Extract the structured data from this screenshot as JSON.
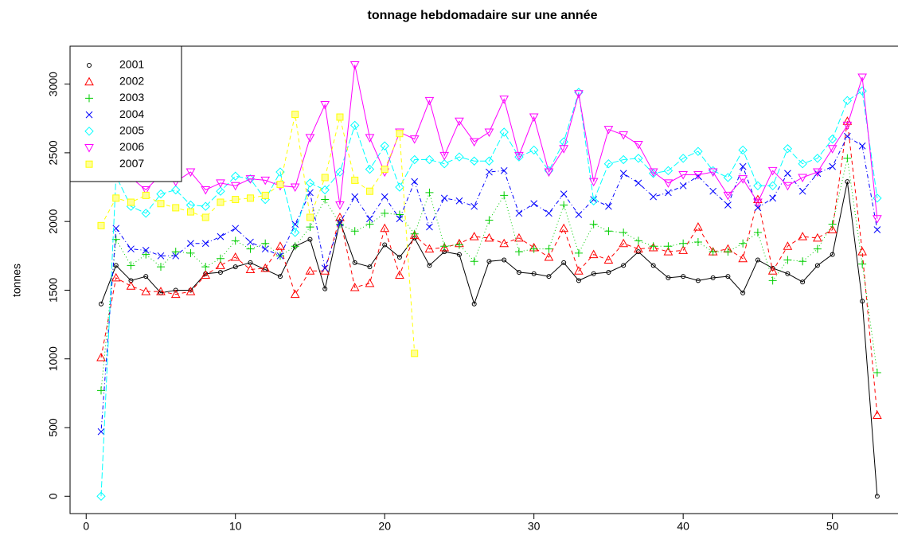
{
  "chart_data": {
    "type": "line",
    "title": "tonnage hebdomadaire sur une année",
    "y_label": "tonnes",
    "x": [
      1,
      2,
      3,
      4,
      5,
      6,
      7,
      8,
      9,
      10,
      11,
      12,
      13,
      14,
      15,
      16,
      17,
      18,
      19,
      20,
      21,
      22,
      23,
      24,
      25,
      26,
      27,
      28,
      29,
      30,
      31,
      32,
      33,
      34,
      35,
      36,
      37,
      38,
      39,
      40,
      41,
      42,
      43,
      44,
      45,
      46,
      47,
      48,
      49,
      50,
      51,
      52,
      53
    ],
    "xlim": [
      -1.08,
      54.5
    ],
    "xticks": [
      0,
      10,
      20,
      30,
      40,
      50
    ],
    "ylim": [
      -126,
      3276
    ],
    "yticks": [
      0,
      500,
      1000,
      1500,
      2000,
      2500,
      3000
    ],
    "legend": "top-left",
    "series": [
      {
        "name": "2001",
        "color": "#000000",
        "marker": "circle",
        "line_style": "solid",
        "values": [
          1400,
          1680,
          1570,
          1600,
          1480,
          1500,
          1500,
          1620,
          1630,
          1670,
          1700,
          1650,
          1600,
          1820,
          1870,
          1510,
          2000,
          1700,
          1670,
          1830,
          1740,
          1880,
          1680,
          1780,
          1760,
          1400,
          1710,
          1720,
          1630,
          1620,
          1600,
          1700,
          1570,
          1620,
          1630,
          1680,
          1780,
          1680,
          1590,
          1600,
          1570,
          1590,
          1600,
          1480,
          1720,
          1660,
          1620,
          1560,
          1680,
          1760,
          2290,
          1420,
          0
        ]
      },
      {
        "name": "2002",
        "color": "#ff0000",
        "marker": "triangle-up",
        "line_style": "dashed",
        "values": [
          1010,
          1590,
          1530,
          1490,
          1490,
          1470,
          1490,
          1610,
          1680,
          1740,
          1650,
          1660,
          1820,
          1470,
          1640,
          1640,
          2030,
          1520,
          1550,
          1950,
          1610,
          1900,
          1800,
          1810,
          1840,
          1890,
          1880,
          1840,
          1880,
          1810,
          1740,
          1950,
          1640,
          1760,
          1720,
          1840,
          1800,
          1810,
          1780,
          1790,
          1960,
          1780,
          1800,
          1730,
          2160,
          1640,
          1820,
          1890,
          1880,
          1940,
          2730,
          1780,
          590
        ]
      },
      {
        "name": "2003",
        "color": "#00cd00",
        "marker": "plus",
        "line_style": "dotted",
        "values": [
          770,
          1870,
          1680,
          1760,
          1670,
          1780,
          1770,
          1670,
          1730,
          1860,
          1800,
          1840,
          1750,
          1820,
          1960,
          2160,
          1980,
          1930,
          1980,
          2060,
          2050,
          1910,
          2210,
          1820,
          1830,
          1710,
          2010,
          2190,
          1780,
          1800,
          1800,
          2120,
          1770,
          1980,
          1930,
          1920,
          1860,
          1820,
          1820,
          1840,
          1850,
          1780,
          1780,
          1840,
          1920,
          1570,
          1720,
          1710,
          1800,
          1980,
          2460,
          1690,
          900
        ]
      },
      {
        "name": "2004",
        "color": "#0000ff",
        "marker": "cross",
        "line_style": "dotdash",
        "values": [
          470,
          1950,
          1800,
          1790,
          1750,
          1750,
          1840,
          1840,
          1890,
          1950,
          1850,
          1800,
          1750,
          1980,
          2210,
          1660,
          1990,
          2180,
          2020,
          2180,
          2020,
          2290,
          1960,
          2170,
          2150,
          2110,
          2360,
          2370,
          2060,
          2130,
          2060,
          2200,
          2050,
          2160,
          2110,
          2350,
          2280,
          2180,
          2210,
          2260,
          2330,
          2220,
          2120,
          2400,
          2100,
          2170,
          2350,
          2220,
          2350,
          2400,
          2620,
          2550,
          1940
        ]
      },
      {
        "name": "2005",
        "color": "#00ffff",
        "marker": "diamond",
        "line_style": "longdash",
        "values": [
          0,
          2330,
          2110,
          2060,
          2200,
          2230,
          2120,
          2110,
          2220,
          2330,
          2310,
          2160,
          2360,
          1920,
          2280,
          2230,
          2360,
          2700,
          2380,
          2550,
          2250,
          2450,
          2450,
          2420,
          2470,
          2440,
          2440,
          2650,
          2470,
          2520,
          2370,
          2580,
          2940,
          2150,
          2420,
          2450,
          2460,
          2350,
          2370,
          2460,
          2510,
          2370,
          2320,
          2520,
          2260,
          2260,
          2530,
          2420,
          2460,
          2600,
          2880,
          2950,
          2170
        ]
      },
      {
        "name": "2006",
        "color": "#ff00ff",
        "marker": "triangle-down",
        "line_style": "solid",
        "values": [
          null,
          2330,
          2320,
          2230,
          2340,
          2290,
          2360,
          2230,
          2280,
          2260,
          2310,
          2300,
          2260,
          2250,
          2610,
          2850,
          2120,
          3140,
          2610,
          2360,
          2650,
          2600,
          2880,
          2480,
          2730,
          2580,
          2650,
          2890,
          2480,
          2760,
          2360,
          2530,
          2930,
          2290,
          2670,
          2630,
          2560,
          2360,
          2280,
          2340,
          2340,
          2360,
          2190,
          2310,
          2140,
          2370,
          2260,
          2320,
          2360,
          2530,
          2700,
          3050,
          2020
        ]
      },
      {
        "name": "2007",
        "color": "#ffff00",
        "marker": "square",
        "line_style": "dashed",
        "values": [
          1970,
          2170,
          2140,
          2190,
          2130,
          2100,
          2070,
          2030,
          2140,
          2160,
          2170,
          2190,
          2270,
          2780,
          2030,
          2320,
          2760,
          2300,
          2220,
          2380,
          2640,
          1040,
          null,
          null,
          null,
          null,
          null,
          null,
          null,
          null,
          null,
          null,
          null,
          null,
          null,
          null,
          null,
          null,
          null,
          null,
          null,
          null,
          null,
          null,
          null,
          null,
          null,
          null,
          null,
          null,
          null,
          null,
          null
        ]
      }
    ]
  }
}
